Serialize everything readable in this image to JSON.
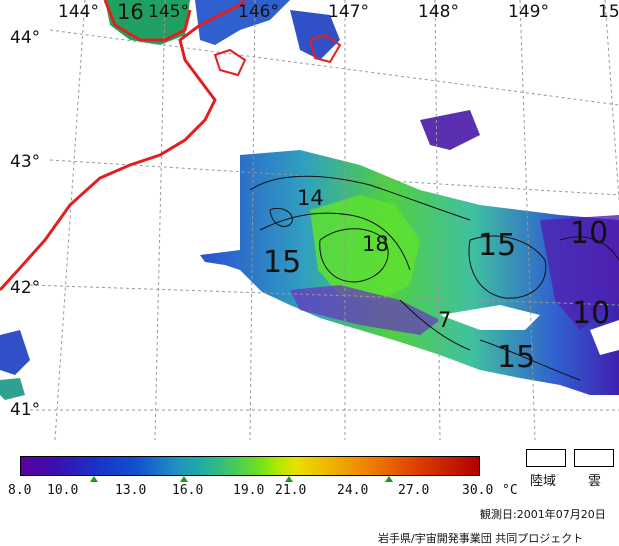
{
  "longitude_labels": [
    "144°",
    "145°",
    "146°",
    "147°",
    "148°",
    "149°",
    "15"
  ],
  "latitude_labels": [
    "44°",
    "43°",
    "42°",
    "41°"
  ],
  "contour_labels": [
    "16",
    "14",
    "18",
    "15",
    "15",
    "15",
    "10",
    "10",
    "7"
  ],
  "colorbar": {
    "ticks": [
      "8.0",
      "10.0",
      "13.0",
      "16.0",
      "19.0",
      "21.0",
      "24.0",
      "27.0",
      "30.0"
    ],
    "unit": "°C"
  },
  "legend": {
    "land": "陸域",
    "cloud": "雲"
  },
  "observation_date": "観測日:2001年07月20日",
  "credit": "岩手県/宇宙開発事業団 共同プロジェクト",
  "colors": {
    "coastline": "#e02020",
    "grid": "#999999"
  }
}
